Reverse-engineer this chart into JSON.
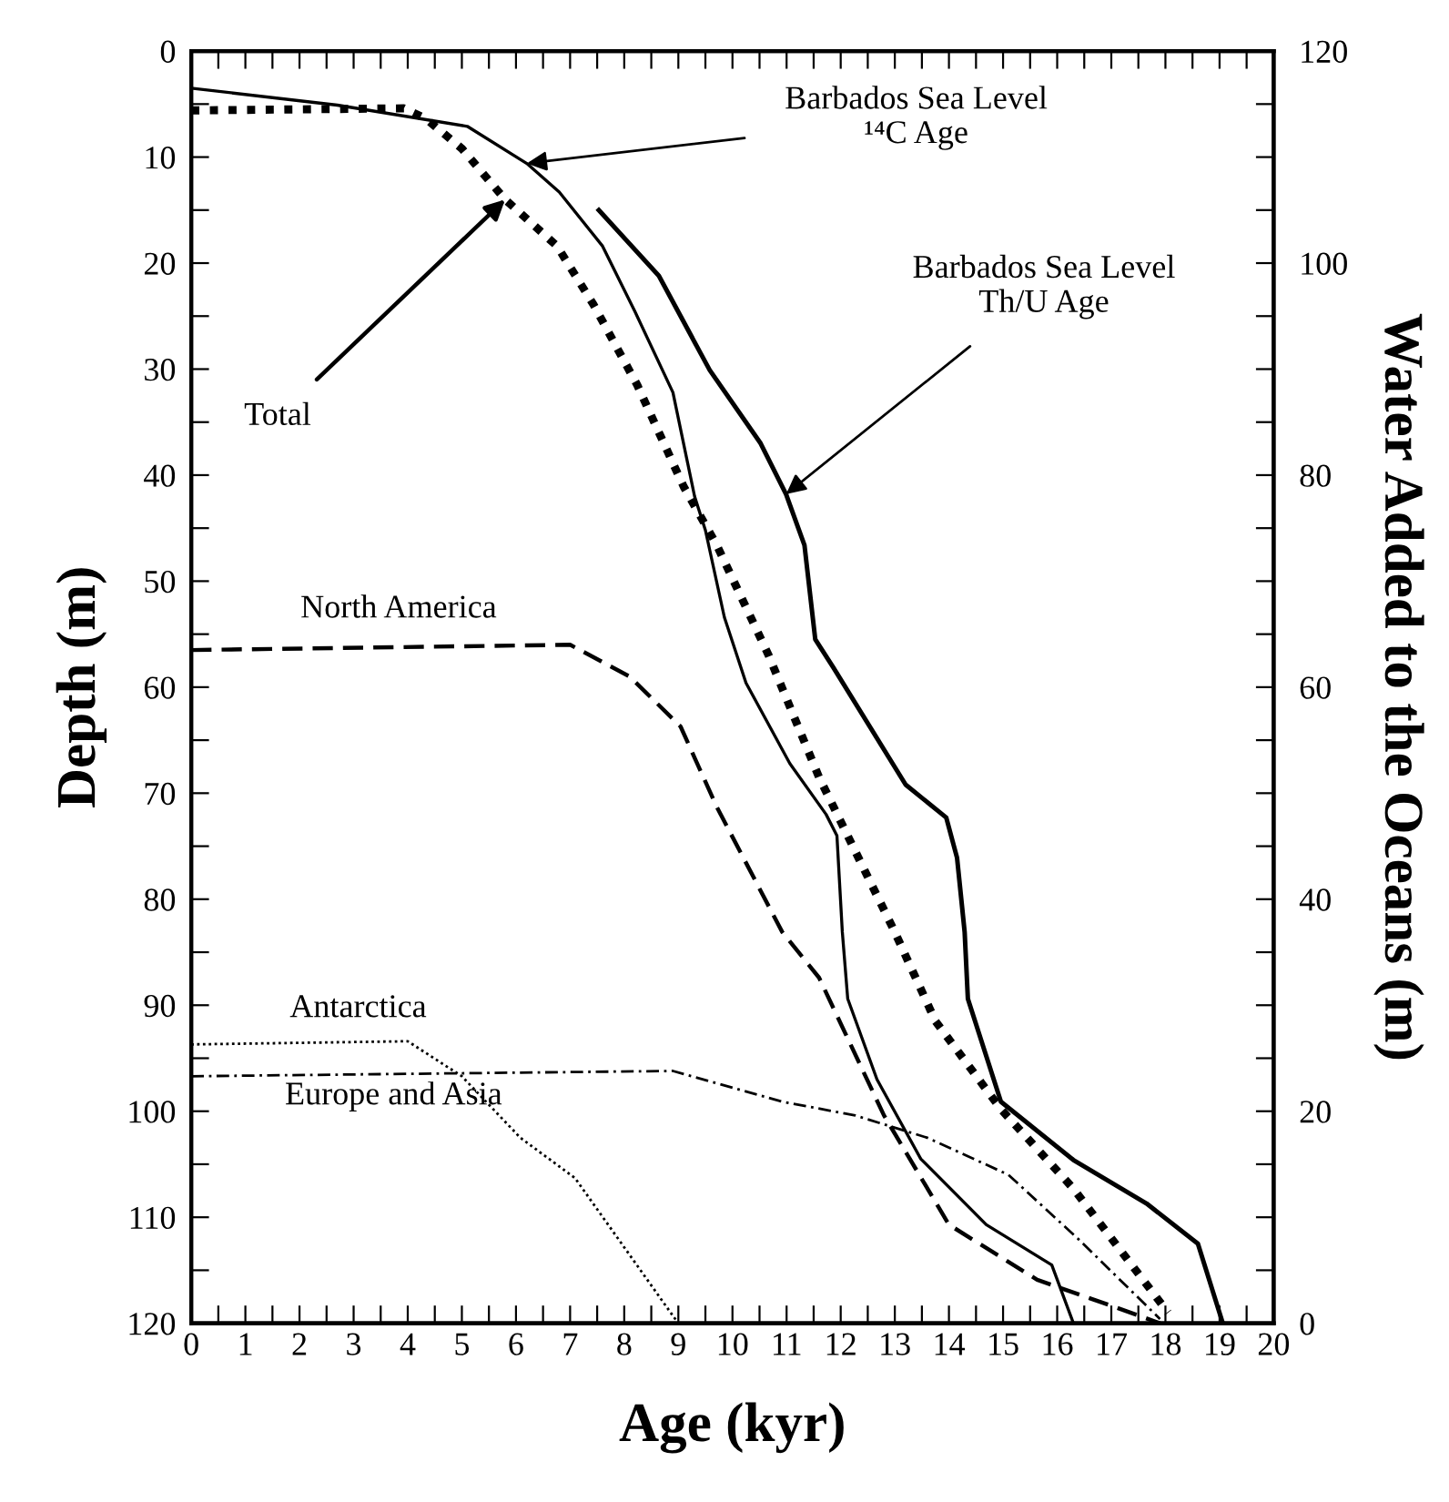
{
  "chart_data": {
    "type": "line",
    "xlabel": "Age (kyr)",
    "ylabel": "Depth (m)",
    "y2label": "Water Added to the Oceans (m)",
    "xlim": [
      0,
      20
    ],
    "xticks": [
      0,
      {
        "value": 0.5,
        "label": null
      },
      1,
      {
        "value": 1.5,
        "label": null
      },
      2,
      {
        "value": 2.5,
        "label": null
      },
      3,
      {
        "value": 3.5,
        "label": null
      },
      4,
      {
        "value": 4.5,
        "label": null
      },
      5,
      {
        "value": 5.5,
        "label": null
      },
      6,
      {
        "value": 6.5,
        "label": null
      },
      7,
      {
        "value": 7.5,
        "label": null
      },
      8,
      {
        "value": 8.5,
        "label": null
      },
      9,
      {
        "value": 9.5,
        "label": null
      },
      10,
      {
        "value": 10.5,
        "label": null
      },
      11,
      {
        "value": 11.5,
        "label": null
      },
      12,
      {
        "value": 12.5,
        "label": null
      },
      13,
      {
        "value": 13.5,
        "label": null
      },
      14,
      {
        "value": 14.5,
        "label": null
      },
      15,
      {
        "value": 15.5,
        "label": null
      },
      16,
      {
        "value": 16.5,
        "label": null
      },
      17,
      {
        "value": 17.5,
        "label": null
      },
      18,
      {
        "value": 18.5,
        "label": null
      },
      19,
      {
        "value": 19.5,
        "label": null
      },
      20
    ],
    "ylim": [
      120,
      0
    ],
    "yticks": [
      0,
      {
        "value": 5,
        "label": null
      },
      10,
      {
        "value": 15,
        "label": null
      },
      20,
      {
        "value": 25,
        "label": null
      },
      30,
      {
        "value": 35,
        "label": null
      },
      40,
      {
        "value": 45,
        "label": null
      },
      50,
      {
        "value": 55,
        "label": null
      },
      60,
      {
        "value": 65,
        "label": null
      },
      70,
      {
        "value": 75,
        "label": null
      },
      80,
      {
        "value": 85,
        "label": null
      },
      90,
      {
        "value": 95,
        "label": null
      },
      100,
      {
        "value": 105,
        "label": null
      },
      110,
      {
        "value": 115,
        "label": null
      },
      120
    ],
    "y2lim": [
      0,
      120
    ],
    "y2ticks": [
      0,
      {
        "value": 5,
        "label": null
      },
      {
        "value": 10,
        "label": null
      },
      {
        "value": 15,
        "label": null
      },
      20,
      {
        "value": 25,
        "label": null
      },
      {
        "value": 30,
        "label": null
      },
      {
        "value": 35,
        "label": null
      },
      40,
      {
        "value": 45,
        "label": null
      },
      {
        "value": 50,
        "label": null
      },
      {
        "value": 55,
        "label": null
      },
      60,
      {
        "value": 65,
        "label": null
      },
      {
        "value": 70,
        "label": null
      },
      {
        "value": 75,
        "label": null
      },
      80,
      {
        "value": 85,
        "label": null
      },
      {
        "value": 90,
        "label": null
      },
      {
        "value": 95,
        "label": null
      },
      100,
      {
        "value": 105,
        "label": null
      },
      {
        "value": 110,
        "label": null
      },
      {
        "value": 115,
        "label": null
      },
      120
    ],
    "grid": false,
    "legend": false,
    "marker": "none",
    "annotations": [
      {
        "text": "Barbados Sea Level\n¹⁴C Age",
        "x": 6.2,
        "y": 10.6
      },
      {
        "text": "Barbados Sea Level\nTh/U Age",
        "x": 10.99,
        "y": 41.8
      },
      {
        "text": "Total",
        "x": 5.8,
        "y": 14
      }
    ],
    "series": [
      {
        "color": "#000000",
        "line_style": "solid",
        "x": [
          0,
          2.7,
          5.1,
          6.2,
          6.8,
          7.6,
          8.2,
          8.9,
          9.3,
          9.5,
          9.85,
          10.25,
          11.06,
          11.73,
          11.93,
          12.03,
          12.13,
          12.67,
          13.48,
          14.69,
          15.9,
          16.3
        ],
        "values": [
          3.5,
          5.1,
          7.1,
          10.6,
          13.3,
          18.4,
          24.6,
          32.2,
          42,
          45.2,
          53.4,
          59.6,
          67.2,
          72,
          74,
          83.1,
          89.4,
          97,
          104.5,
          110.7,
          114.5,
          120
        ]
      },
      {
        "color": "#000000",
        "line_style": "solid",
        "x": [
          7.53,
          8.64,
          9.58,
          10.52,
          10.99,
          11.33,
          11.53,
          11.87,
          13.2,
          13.95,
          14.15,
          14.29,
          14.35,
          14.96,
          16.3,
          17.65,
          18.6,
          19.06
        ],
        "values": [
          15,
          21.2,
          30.1,
          37,
          41.8,
          46.6,
          55.5,
          58.2,
          69.2,
          72.3,
          76.1,
          83.1,
          89.4,
          99.1,
          104.6,
          108.7,
          112.5,
          120
        ]
      },
      {
        "color": "#000000",
        "line_style": "dotted",
        "x": [
          0,
          3.93,
          4.34,
          5.0,
          5.8,
          6.76,
          7.43,
          8.24,
          9.1,
          9.71,
          10.66,
          11.6,
          13.0,
          13.75,
          14.96,
          16.3,
          18.05
        ],
        "values": [
          5.6,
          5.4,
          6.4,
          9.2,
          14,
          18.4,
          23.9,
          31.5,
          41.1,
          46.6,
          56.9,
          68.5,
          83.1,
          91.5,
          99.8,
          107.3,
          119
        ]
      },
      {
        "name": "North America",
        "color": "#000000",
        "line_style": "dashed",
        "x": [
          0,
          7.0,
          8.1,
          9.04,
          9.71,
          10.92,
          11.6,
          12.8,
          14.0,
          15.63,
          16.97,
          17.9
        ],
        "values": [
          56.5,
          56,
          59,
          63.7,
          71.3,
          83.1,
          87.4,
          100.4,
          110.7,
          115.9,
          118.3,
          120
        ]
      },
      {
        "name": "Antarctica",
        "color": "#000000",
        "line_style": "dotted",
        "x": [
          0,
          4.0,
          5.0,
          6.08,
          7.09,
          8.9,
          9.0
        ],
        "values": [
          93.7,
          93.4,
          96.7,
          102.5,
          106.3,
          119.3,
          120
        ]
      },
      {
        "name": "Europe and Asia",
        "color": "#000000",
        "line_style": "dashdot",
        "x": [
          0,
          8.9,
          10.92,
          12.27,
          13.6,
          15.1,
          16.4,
          17.9
        ],
        "values": [
          96.7,
          96.2,
          99.1,
          100.4,
          102.5,
          106,
          112.1,
          119.6
        ]
      }
    ]
  }
}
